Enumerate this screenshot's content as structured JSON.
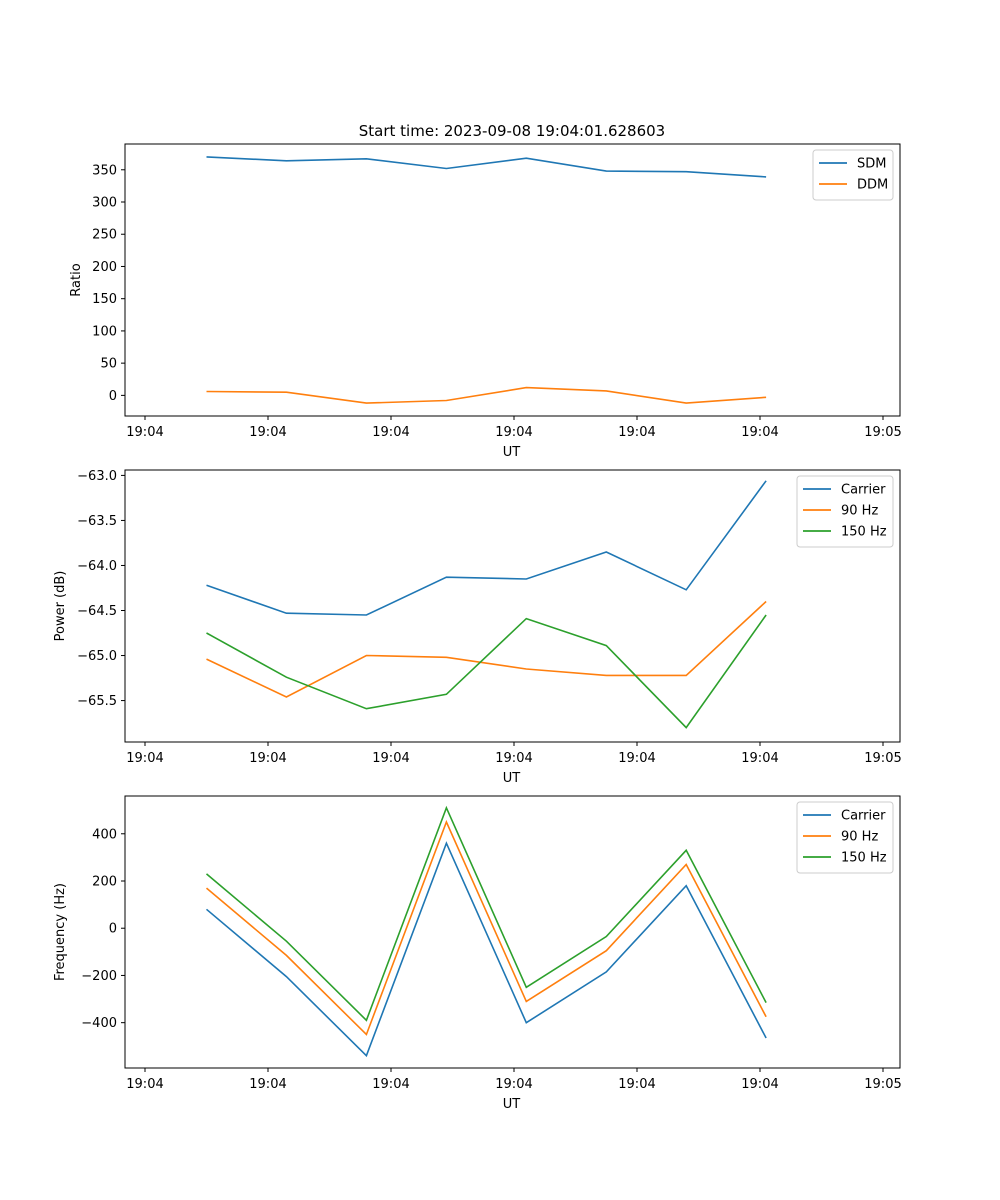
{
  "chart_data": [
    {
      "type": "line",
      "title": "Start time: 2023-09-08 19:04:01.628603",
      "xlabel": "UT",
      "ylabel": "Ratio",
      "xlim": [
        0,
        6
      ],
      "ylim": [
        -32,
        390
      ],
      "x": [
        0.5,
        1.15,
        1.8,
        2.45,
        3.1,
        3.75,
        4.4,
        5.05
      ],
      "xticks": [
        0,
        1,
        2,
        3,
        4,
        5,
        6
      ],
      "xticklabels": [
        "19:04",
        "19:04",
        "19:04",
        "19:04",
        "19:04",
        "19:04",
        "19:05"
      ],
      "yticks": [
        0,
        50,
        100,
        150,
        200,
        250,
        300,
        350
      ],
      "yticklabels": [
        "0",
        "50",
        "100",
        "150",
        "200",
        "250",
        "300",
        "350"
      ],
      "legend_position": "top-right",
      "series": [
        {
          "name": "SDM",
          "color": "#1f77b4",
          "values": [
            370,
            364,
            367,
            352,
            368,
            348,
            347,
            339
          ]
        },
        {
          "name": "DDM",
          "color": "#ff7f0e",
          "values": [
            6,
            5,
            -12,
            -8,
            12,
            7,
            -12,
            -3
          ]
        }
      ]
    },
    {
      "type": "line",
      "title": "",
      "xlabel": "UT",
      "ylabel": "Power (dB)",
      "xlim": [
        0,
        6
      ],
      "ylim": [
        -65.96,
        -62.94
      ],
      "x": [
        0.5,
        1.15,
        1.8,
        2.45,
        3.1,
        3.75,
        4.4,
        5.05
      ],
      "xticks": [
        0,
        1,
        2,
        3,
        4,
        5,
        6
      ],
      "xticklabels": [
        "19:04",
        "19:04",
        "19:04",
        "19:04",
        "19:04",
        "19:04",
        "19:05"
      ],
      "yticks": [
        -63.0,
        -63.5,
        -64.0,
        -64.5,
        -65.0,
        -65.5
      ],
      "yticklabels": [
        "−63.0",
        "−63.5",
        "−64.0",
        "−64.5",
        "−65.0",
        "−65.5"
      ],
      "legend_position": "top-right",
      "series": [
        {
          "name": "Carrier",
          "color": "#1f77b4",
          "values": [
            -64.22,
            -64.53,
            -64.55,
            -64.13,
            -64.15,
            -63.85,
            -64.27,
            -63.06
          ]
        },
        {
          "name": "90 Hz",
          "color": "#ff7f0e",
          "values": [
            -65.04,
            -65.46,
            -65.0,
            -65.02,
            -65.15,
            -65.22,
            -65.22,
            -64.4
          ]
        },
        {
          "name": "150 Hz",
          "color": "#2ca02c",
          "values": [
            -64.75,
            -65.24,
            -65.59,
            -65.43,
            -64.59,
            -64.89,
            -65.8,
            -64.55
          ]
        }
      ]
    },
    {
      "type": "line",
      "title": "",
      "xlabel": "UT",
      "ylabel": "Frequency (Hz)",
      "xlim": [
        0,
        6
      ],
      "ylim": [
        -592,
        560
      ],
      "x": [
        0.5,
        1.15,
        1.8,
        2.45,
        3.1,
        3.75,
        4.4,
        5.05
      ],
      "xticks": [
        0,
        1,
        2,
        3,
        4,
        5,
        6
      ],
      "xticklabels": [
        "19:04",
        "19:04",
        "19:04",
        "19:04",
        "19:04",
        "19:04",
        "19:05"
      ],
      "yticks": [
        400,
        200,
        0,
        -200,
        -400
      ],
      "yticklabels": [
        "400",
        "200",
        "0",
        "−200",
        "−400"
      ],
      "legend_position": "top-right",
      "series": [
        {
          "name": "Carrier",
          "color": "#1f77b4",
          "values": [
            80,
            -205,
            -540,
            360,
            -400,
            -185,
            180,
            -465
          ]
        },
        {
          "name": "90 Hz",
          "color": "#ff7f0e",
          "values": [
            170,
            -115,
            -450,
            450,
            -310,
            -95,
            270,
            -375
          ]
        },
        {
          "name": "150 Hz",
          "color": "#2ca02c",
          "values": [
            230,
            -55,
            -390,
            510,
            -250,
            -35,
            330,
            -315
          ]
        }
      ]
    }
  ]
}
